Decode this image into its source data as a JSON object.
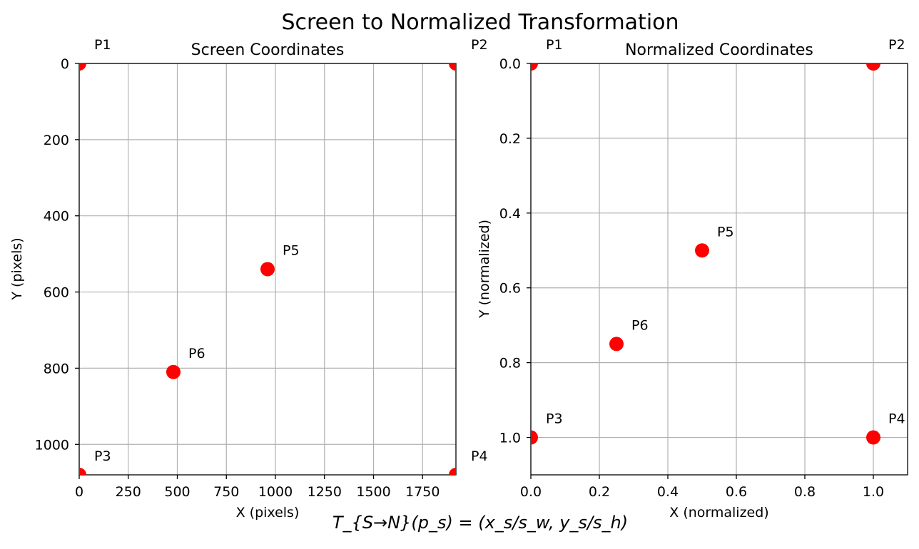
{
  "figure_title": "Screen to Normalized Transformation",
  "formula": "T_{S→N}(p_s) = (x_s/s_w, y_s/s_h)",
  "colors": {
    "point": "#ff0000",
    "grid": "#b0b0b0"
  },
  "chart_data": [
    {
      "type": "scatter",
      "title": "Screen Coordinates",
      "xlabel": "X (pixels)",
      "ylabel": "Y (pixels)",
      "xlim": [
        0,
        1920
      ],
      "ylim": [
        1080,
        0
      ],
      "y_inverted": true,
      "grid": true,
      "xticks": [
        0,
        250,
        500,
        750,
        1000,
        1250,
        1500,
        1750
      ],
      "xtick_labels": [
        "0",
        "250",
        "500",
        "750",
        "1000",
        "1250",
        "1500",
        "1750"
      ],
      "yticks": [
        0,
        200,
        400,
        600,
        800,
        1000
      ],
      "ytick_labels": [
        "0",
        "200",
        "400",
        "600",
        "800",
        "1000"
      ],
      "points": [
        {
          "label": "P1",
          "x": 0,
          "y": 0
        },
        {
          "label": "P2",
          "x": 1920,
          "y": 0
        },
        {
          "label": "P3",
          "x": 0,
          "y": 1080
        },
        {
          "label": "P4",
          "x": 1920,
          "y": 1080
        },
        {
          "label": "P5",
          "x": 960,
          "y": 540
        },
        {
          "label": "P6",
          "x": 480,
          "y": 810
        }
      ]
    },
    {
      "type": "scatter",
      "title": "Normalized Coordinates",
      "xlabel": "X (normalized)",
      "ylabel": "Y (normalized)",
      "xlim": [
        0,
        1.1
      ],
      "ylim": [
        1.1,
        0
      ],
      "y_inverted": true,
      "grid": true,
      "xticks": [
        0,
        0.2,
        0.4,
        0.6,
        0.8,
        1.0
      ],
      "xtick_labels": [
        "0.0",
        "0.2",
        "0.4",
        "0.6",
        "0.8",
        "1.0"
      ],
      "yticks": [
        0,
        0.2,
        0.4,
        0.6,
        0.8,
        1.0
      ],
      "ytick_labels": [
        "0.0",
        "0.2",
        "0.4",
        "0.6",
        "0.8",
        "1.0"
      ],
      "points": [
        {
          "label": "P1",
          "x": 0,
          "y": 0
        },
        {
          "label": "P2",
          "x": 1.0,
          "y": 0
        },
        {
          "label": "P3",
          "x": 0,
          "y": 1.0
        },
        {
          "label": "P4",
          "x": 1.0,
          "y": 1.0
        },
        {
          "label": "P5",
          "x": 0.5,
          "y": 0.5
        },
        {
          "label": "P6",
          "x": 0.25,
          "y": 0.75
        }
      ]
    }
  ]
}
